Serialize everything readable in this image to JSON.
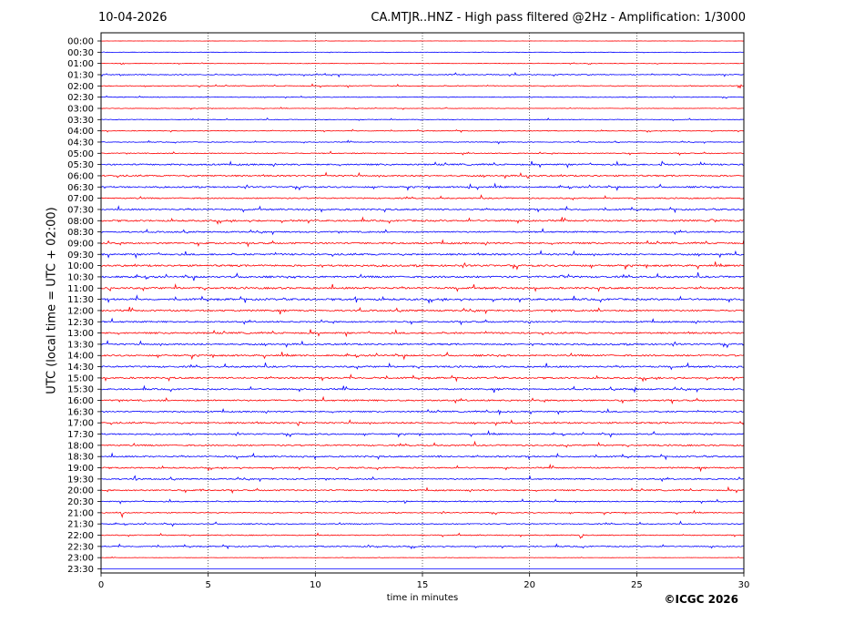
{
  "header": {
    "date": "10-04-2026",
    "title": "CA.MTJR..HNZ - High pass filtered @2Hz - Amplification: 1/3000"
  },
  "footer": {
    "copyright": "©ICGC 2026"
  },
  "chart_data": {
    "type": "line",
    "title": "CA.MTJR..HNZ - High pass filtered @2Hz - Amplification: 1/3000",
    "xlabel": "time in minutes",
    "ylabel": "UTC (local time = UTC + 02:00)",
    "xlim": [
      0,
      30
    ],
    "xticks": [
      0,
      5,
      10,
      15,
      20,
      25,
      30
    ],
    "xtick_labels": [
      "0",
      "5",
      "10",
      "15",
      "20",
      "25",
      "30"
    ],
    "x_gridlines": [
      5,
      10,
      15,
      20,
      25
    ],
    "grid": "vertical dotted",
    "colors": [
      "#ff0000",
      "#0000ff"
    ],
    "rows": [
      {
        "label": "00:00",
        "color": "#ff0000",
        "amp": 0.1
      },
      {
        "label": "00:30",
        "color": "#0000ff",
        "amp": 0.15
      },
      {
        "label": "01:00",
        "color": "#ff0000",
        "amp": 0.25
      },
      {
        "label": "01:30",
        "color": "#0000ff",
        "amp": 0.45
      },
      {
        "label": "02:00",
        "color": "#ff0000",
        "amp": 0.4
      },
      {
        "label": "02:30",
        "color": "#0000ff",
        "amp": 0.3
      },
      {
        "label": "03:00",
        "color": "#ff0000",
        "amp": 0.25
      },
      {
        "label": "03:30",
        "color": "#0000ff",
        "amp": 0.3
      },
      {
        "label": "04:00",
        "color": "#ff0000",
        "amp": 0.35
      },
      {
        "label": "04:30",
        "color": "#0000ff",
        "amp": 0.35
      },
      {
        "label": "05:00",
        "color": "#ff0000",
        "amp": 0.45
      },
      {
        "label": "05:30",
        "color": "#0000ff",
        "amp": 0.75
      },
      {
        "label": "06:00",
        "color": "#ff0000",
        "amp": 0.75
      },
      {
        "label": "06:30",
        "color": "#0000ff",
        "amp": 0.7
      },
      {
        "label": "07:00",
        "color": "#ff0000",
        "amp": 0.6
      },
      {
        "label": "07:30",
        "color": "#0000ff",
        "amp": 0.7
      },
      {
        "label": "08:00",
        "color": "#ff0000",
        "amp": 0.8
      },
      {
        "label": "08:30",
        "color": "#0000ff",
        "amp": 0.7
      },
      {
        "label": "09:00",
        "color": "#ff0000",
        "amp": 0.8
      },
      {
        "label": "09:30",
        "color": "#0000ff",
        "amp": 0.85
      },
      {
        "label": "10:00",
        "color": "#ff0000",
        "amp": 0.9
      },
      {
        "label": "10:30",
        "color": "#0000ff",
        "amp": 0.9
      },
      {
        "label": "11:00",
        "color": "#ff0000",
        "amp": 0.9
      },
      {
        "label": "11:30",
        "color": "#0000ff",
        "amp": 0.9
      },
      {
        "label": "12:00",
        "color": "#ff0000",
        "amp": 0.8
      },
      {
        "label": "12:30",
        "color": "#0000ff",
        "amp": 0.7
      },
      {
        "label": "13:00",
        "color": "#ff0000",
        "amp": 0.8
      },
      {
        "label": "13:30",
        "color": "#0000ff",
        "amp": 0.8
      },
      {
        "label": "14:00",
        "color": "#ff0000",
        "amp": 0.8
      },
      {
        "label": "14:30",
        "color": "#0000ff",
        "amp": 0.8
      },
      {
        "label": "15:00",
        "color": "#ff0000",
        "amp": 0.8
      },
      {
        "label": "15:30",
        "color": "#0000ff",
        "amp": 0.75
      },
      {
        "label": "16:00",
        "color": "#ff0000",
        "amp": 0.75
      },
      {
        "label": "16:30",
        "color": "#0000ff",
        "amp": 0.65
      },
      {
        "label": "17:00",
        "color": "#ff0000",
        "amp": 0.75
      },
      {
        "label": "17:30",
        "color": "#0000ff",
        "amp": 0.65
      },
      {
        "label": "18:00",
        "color": "#ff0000",
        "amp": 0.7
      },
      {
        "label": "18:30",
        "color": "#0000ff",
        "amp": 0.7
      },
      {
        "label": "19:00",
        "color": "#ff0000",
        "amp": 0.65
      },
      {
        "label": "19:30",
        "color": "#0000ff",
        "amp": 0.65
      },
      {
        "label": "20:00",
        "color": "#ff0000",
        "amp": 0.65
      },
      {
        "label": "20:30",
        "color": "#0000ff",
        "amp": 0.55
      },
      {
        "label": "21:00",
        "color": "#ff0000",
        "amp": 0.45
      },
      {
        "label": "21:30",
        "color": "#0000ff",
        "amp": 0.5
      },
      {
        "label": "22:00",
        "color": "#ff0000",
        "amp": 0.45
      },
      {
        "label": "22:30",
        "color": "#0000ff",
        "amp": 0.55
      },
      {
        "label": "23:00",
        "color": "#ff0000",
        "amp": 0.15
      },
      {
        "label": "23:30",
        "color": "#0000ff",
        "amp": 0.0
      }
    ],
    "events": [
      {
        "row": "01:00",
        "x": 1.0,
        "amp": 2.5
      },
      {
        "row": "02:00",
        "x": 29.8,
        "amp": 4.0
      },
      {
        "row": "05:30",
        "x": 26.2,
        "amp": 4.0
      },
      {
        "row": "06:30",
        "x": 17.2,
        "amp": 4.0
      },
      {
        "row": "06:00",
        "x": 19.9,
        "amp": 3.5
      },
      {
        "row": "08:00",
        "x": 28.5,
        "amp": 3.5
      },
      {
        "row": "10:30",
        "x": 21.5,
        "amp": 4.0
      },
      {
        "row": "11:00",
        "x": 0.4,
        "amp": 4.0
      },
      {
        "row": "11:30",
        "x": 11.9,
        "amp": 4.0
      },
      {
        "row": "12:30",
        "x": 20.0,
        "amp": 3.0
      },
      {
        "row": "14:00",
        "x": 28.6,
        "amp": 3.5
      },
      {
        "row": "15:00",
        "x": 12.8,
        "amp": 3.5
      },
      {
        "row": "15:30",
        "x": 24.9,
        "amp": 3.5
      },
      {
        "row": "16:30",
        "x": 18.6,
        "amp": 3.0
      },
      {
        "row": "17:00",
        "x": 9.2,
        "amp": 3.5
      },
      {
        "row": "17:00",
        "x": 29.9,
        "amp": 3.5
      },
      {
        "row": "18:30",
        "x": 15.8,
        "amp": 3.5
      },
      {
        "row": "19:00",
        "x": 11.0,
        "amp": 3.5
      },
      {
        "row": "19:30",
        "x": 1.6,
        "amp": 4.0
      },
      {
        "row": "20:00",
        "x": 4.7,
        "amp": 3.5
      },
      {
        "row": "20:30",
        "x": 14.2,
        "amp": 3.0
      },
      {
        "row": "21:00",
        "x": 1.0,
        "amp": 5.5
      },
      {
        "row": "22:00",
        "x": 22.4,
        "amp": 5.5
      },
      {
        "row": "22:30",
        "x": 12.6,
        "amp": 4.0
      }
    ]
  }
}
